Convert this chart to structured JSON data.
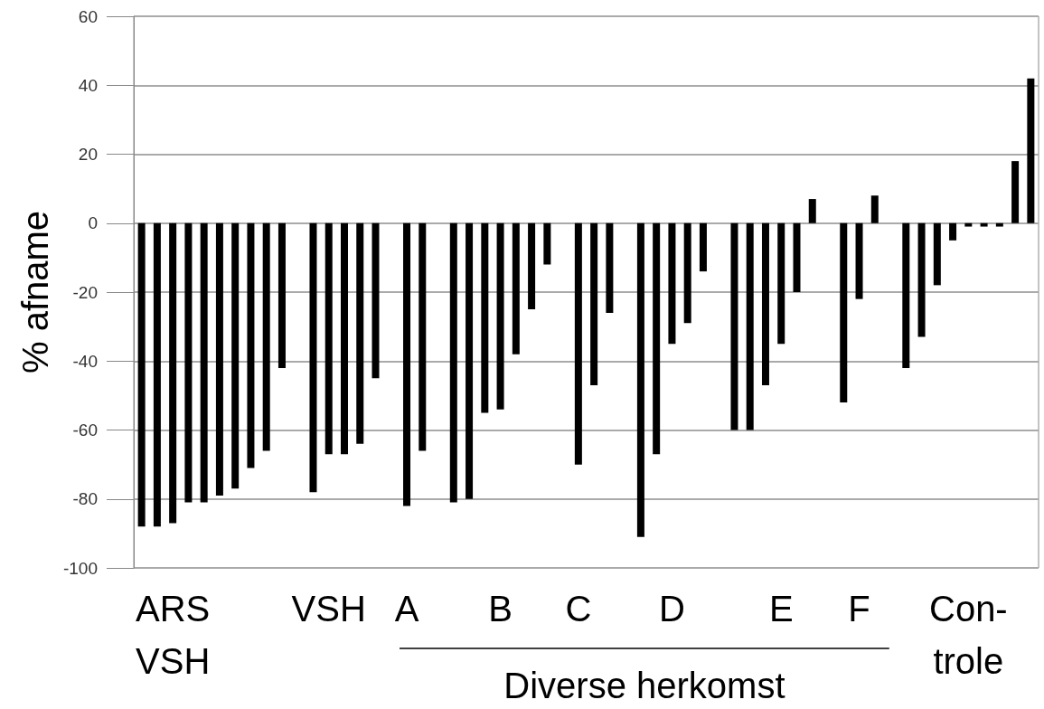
{
  "chart_data": {
    "type": "bar",
    "ylabel": "% afname",
    "categories": [
      null,
      null,
      "ARS\nVSH",
      null,
      null,
      null,
      null,
      null,
      null,
      null,
      null,
      null,
      "VSH",
      null,
      null,
      null,
      null,
      "A",
      null,
      null,
      null,
      null,
      null,
      "B",
      null,
      null,
      null,
      null,
      "C",
      null,
      null,
      null,
      null,
      null,
      "D",
      null,
      null,
      null,
      null,
      null,
      null,
      "E",
      null,
      null,
      null,
      null,
      "F",
      null,
      null,
      null,
      null,
      null,
      null,
      "Con-\ntrole",
      null,
      null,
      null,
      null
    ],
    "values": [
      -88,
      -88,
      -87,
      -81,
      -81,
      -79,
      -77,
      -71,
      -66,
      -42,
      null,
      -78,
      -67,
      -67,
      -64,
      -45,
      null,
      -82,
      -66,
      null,
      -81,
      -80,
      -55,
      -54,
      -38,
      -25,
      -12,
      null,
      -70,
      -47,
      -26,
      null,
      -91,
      -67,
      -35,
      -29,
      -14,
      null,
      -60,
      -60,
      -47,
      -35,
      -20,
      7,
      null,
      -52,
      -22,
      8,
      null,
      -42,
      -33,
      -18,
      -5,
      -1,
      -1,
      -1,
      18,
      42
    ],
    "color": "#000000",
    "ylim": [
      -100,
      60
    ],
    "yticks": [
      -100,
      -80,
      -60,
      -40,
      -20,
      0,
      20,
      40,
      60
    ],
    "grid": true,
    "annotations": [
      "Diverse herkomst"
    ]
  }
}
